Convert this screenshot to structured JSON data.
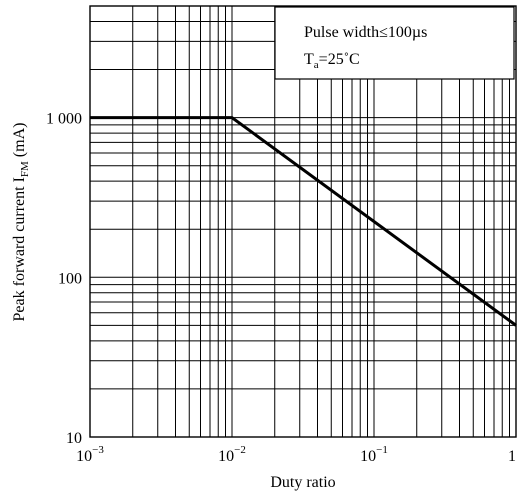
{
  "chart_data": {
    "type": "line",
    "xlabel": "Duty ratio",
    "ylabel_main": "Peak forward current I",
    "ylabel_sub": "FM",
    "ylabel_unit": " (mA)",
    "x_scale": "log",
    "y_scale": "log",
    "xlim": [
      0.001,
      1
    ],
    "ylim": [
      10,
      5000
    ],
    "grid": true,
    "x_ticks": [
      {
        "value": 0.001,
        "base": "10",
        "exp": "−3"
      },
      {
        "value": 0.01,
        "base": "10",
        "exp": "−2"
      },
      {
        "value": 0.1,
        "base": "10",
        "exp": "−1"
      },
      {
        "value": 1,
        "base": "1",
        "exp": ""
      }
    ],
    "y_ticks": [
      {
        "value": 10,
        "label": "10"
      },
      {
        "value": 100,
        "label": "100"
      },
      {
        "value": 1000,
        "label": "1 000"
      }
    ],
    "annotation": {
      "line1": "Pulse width≤100µs",
      "line2_main": "T",
      "line2_sub": "a",
      "line2_rest": "=25˚C",
      "placement": "top-right"
    },
    "series": [
      {
        "x": [
          0.001,
          0.01,
          1
        ],
        "y": [
          1000,
          1000,
          50
        ]
      }
    ]
  }
}
